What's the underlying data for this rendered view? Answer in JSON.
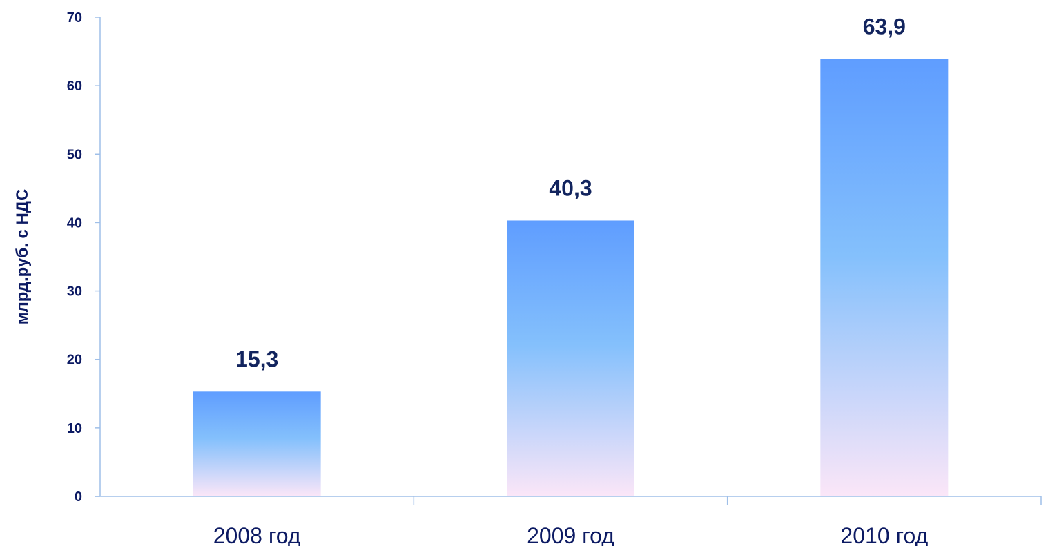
{
  "chart_data": {
    "type": "bar",
    "title": "",
    "xlabel": "",
    "ylabel": "млрд.руб. с НДС",
    "categories": [
      "2008 год",
      "2009 год",
      "2010 год"
    ],
    "values": [
      15.3,
      40.3,
      63.9
    ],
    "value_labels": [
      "15,3",
      "40,3",
      "63,9"
    ],
    "ylim": [
      0,
      70
    ],
    "yticks": [
      0,
      10,
      20,
      30,
      40,
      50,
      60,
      70
    ],
    "ytick_labels": [
      "0",
      "10",
      "20",
      "30",
      "40",
      "50",
      "60",
      "70"
    ],
    "grid": false,
    "legend": "none",
    "colors": {
      "bar_top": "#5f9dff",
      "bar_mid": "#84c0fc",
      "bar_bottom": "#fbe6f8",
      "axis": "#9fbfe8",
      "text": "#0c1a63",
      "value_label": "#12245e"
    }
  }
}
